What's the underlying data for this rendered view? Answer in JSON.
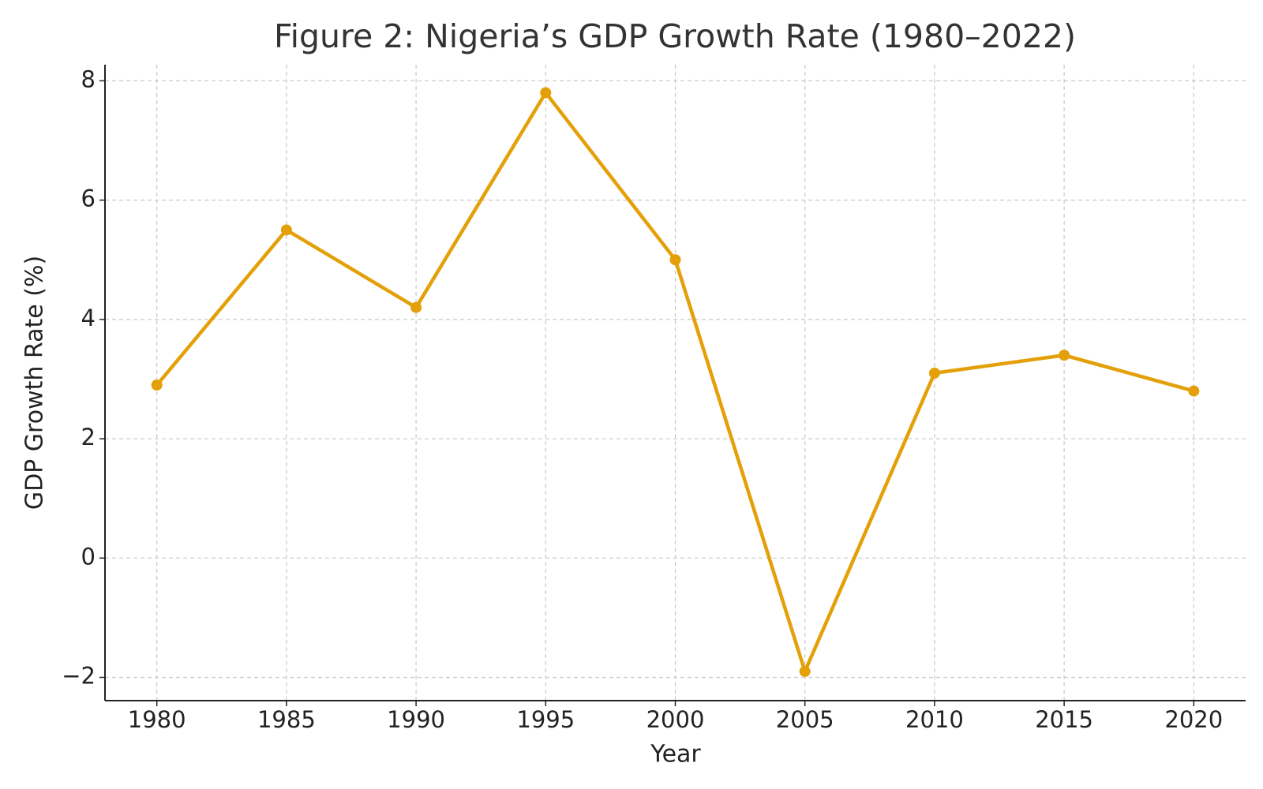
{
  "chart_data": {
    "type": "line",
    "title": "Figure 2: Nigeria’s GDP Growth Rate (1980–2022)",
    "xlabel": "Year",
    "ylabel": "GDP Growth Rate (%)",
    "x": [
      1980,
      1985,
      1990,
      1995,
      2000,
      2005,
      2010,
      2015,
      2020
    ],
    "series": [
      {
        "name": "GDP Growth Rate",
        "color": "#e3a008",
        "values": [
          2.9,
          5.5,
          4.2,
          7.8,
          5.0,
          -1.9,
          3.1,
          3.4,
          2.8
        ]
      }
    ],
    "xlim": [
      1978,
      2022
    ],
    "ylim": [
      -2.39,
      8.27
    ],
    "xticks": [
      1980,
      1985,
      1990,
      1995,
      2000,
      2005,
      2010,
      2015,
      2020
    ],
    "yticks": [
      {
        "value": -2,
        "label": "−2"
      },
      0,
      2,
      4,
      6,
      8
    ],
    "grid": true
  }
}
